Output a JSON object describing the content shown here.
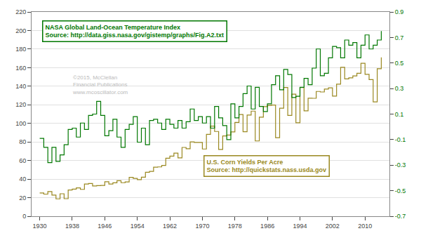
{
  "chart_data": {
    "type": "line",
    "x": [
      1930,
      1931,
      1932,
      1933,
      1934,
      1935,
      1936,
      1937,
      1938,
      1939,
      1940,
      1941,
      1942,
      1943,
      1944,
      1945,
      1946,
      1947,
      1948,
      1949,
      1950,
      1951,
      1952,
      1953,
      1954,
      1955,
      1956,
      1957,
      1958,
      1959,
      1960,
      1961,
      1962,
      1963,
      1964,
      1965,
      1966,
      1967,
      1968,
      1969,
      1970,
      1971,
      1972,
      1973,
      1974,
      1975,
      1976,
      1977,
      1978,
      1979,
      1980,
      1981,
      1982,
      1983,
      1984,
      1985,
      1986,
      1987,
      1988,
      1989,
      1990,
      1991,
      1992,
      1993,
      1994,
      1995,
      1996,
      1997,
      1998,
      1999,
      2000,
      2001,
      2002,
      2003,
      2004,
      2005,
      2006,
      2007,
      2008,
      2009,
      2010,
      2011,
      2012,
      2013,
      2014
    ],
    "series": [
      {
        "color": "#9a8820",
        "line_style": "step",
        "values": [
          25.0,
          23.8,
          26.5,
          22.8,
          18.7,
          24.2,
          18.9,
          28.2,
          29.2,
          30.5,
          28.9,
          34.7,
          35.3,
          32.6,
          33.0,
          33.1,
          37.1,
          34.7,
          36.0,
          38.2,
          36.1,
          36.9,
          41.8,
          40.7,
          39.4,
          42.0,
          47.4,
          48.3,
          52.8,
          53.1,
          54.7,
          62.4,
          64.7,
          67.9,
          62.9,
          74.1,
          72.7,
          80.0,
          79.5,
          79.5,
          72.4,
          88.1,
          97.1,
          91.3,
          71.9,
          86.4,
          87.4,
          90.8,
          101.0,
          109.5,
          91.0,
          108.9,
          113.2,
          81.1,
          106.7,
          118.0,
          119.4,
          119.8,
          84.6,
          116.3,
          138.6,
          108.6,
          131.5,
          100.7,
          138.6,
          113.5,
          127.1,
          127.0,
          134.4,
          133.8,
          136.9,
          138.2,
          129.3,
          142.2,
          160.4,
          147.9,
          149.1,
          151.1,
          153.9,
          164.7,
          152.8,
          147.2,
          123.1,
          158.8,
          171.0
        ]
      },
      {
        "color": "#007700",
        "line_style": "step",
        "axis": "y2",
        "values": [
          -0.09,
          -0.16,
          -0.28,
          -0.16,
          -0.27,
          -0.22,
          -0.14,
          -0.02,
          -0.01,
          -0.08,
          0.03,
          -0.02,
          0.09,
          0.1,
          0.2,
          0.09,
          -0.07,
          -0.03,
          0.06,
          -0.08,
          -0.16,
          -0.02,
          0.02,
          0.08,
          -0.12,
          -0.01,
          -0.14,
          0.05,
          0.06,
          0.03,
          -0.02,
          0.06,
          0.02,
          -0.01,
          0.05,
          -0.01,
          0.04,
          0.14,
          0.05,
          0.08,
          0.03,
          0.08,
          -0.01,
          0.16,
          0.07,
          0.01,
          -0.1,
          0.18,
          0.07,
          0.16,
          0.26,
          0.32,
          0.14,
          0.31,
          0.16,
          0.12,
          0.18,
          0.33,
          0.4,
          0.29,
          0.45,
          0.41,
          0.23,
          0.24,
          0.31,
          0.38,
          0.33,
          0.46,
          0.61,
          0.4,
          0.42,
          0.54,
          0.63,
          0.62,
          0.54,
          0.68,
          0.64,
          0.66,
          0.54,
          0.64,
          0.72,
          0.61,
          0.64,
          0.68,
          0.75
        ]
      }
    ],
    "xlim": [
      1928,
      2016
    ],
    "xticks": [
      1930,
      1938,
      1946,
      1954,
      1962,
      1970,
      1978,
      1986,
      1994,
      2002,
      2010
    ],
    "ylim": [
      0,
      220
    ],
    "yticks": [
      0,
      20,
      40,
      60,
      80,
      100,
      120,
      140,
      160,
      180,
      200,
      220
    ],
    "y2lim": [
      -0.7,
      0.9
    ],
    "y2ticks": [
      -0.7,
      -0.5,
      -0.3,
      -0.1,
      0.1,
      0.3,
      0.5,
      0.7,
      0.9
    ],
    "grid": true,
    "annotations": [
      {
        "text": "NASA Global Land-Ocean Temperature Index\nSource: http://data.giss.nasa.gov/gistemp/graphs/Fig.A2.txt",
        "color": "#007700"
      },
      {
        "text": "U.S. Corn Yields Per Acre\nSource: http://quickstats.nass.usda.gov",
        "color": "#9a8820"
      },
      {
        "text": "©2015, McClellan\nFinancial Publications\nwww.mcoscillator.com",
        "color": "#bbbbbb"
      }
    ]
  }
}
